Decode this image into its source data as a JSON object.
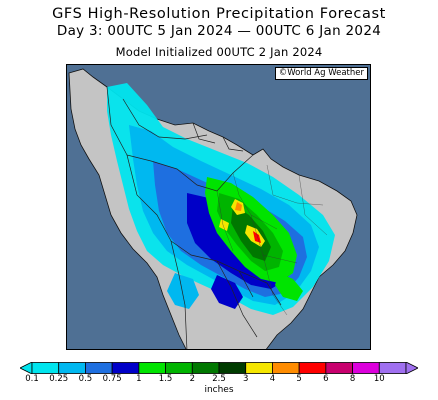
{
  "header": {
    "title": "GFS High-Resolution Precipitation Forecast",
    "subtitle": "Day 3: 00UTC 5 Jan 2024 — 00UTC 6 Jan 2024",
    "init": "Model Initialized 00UTC 2 Jan 2024"
  },
  "map": {
    "credit": "©World Ag Weather",
    "region": "South America",
    "colors": {
      "ocean": "#4f7094",
      "land": "#c4c4c4",
      "borders": "#222222"
    }
  },
  "legend": {
    "units": "inches",
    "ticks": [
      "0.1",
      "0.25",
      "0.5",
      "0.75",
      "1",
      "1.5",
      "2",
      "2.5",
      "3",
      "4",
      "5",
      "6",
      "8",
      "10"
    ],
    "colors": [
      "#00e5ee",
      "#00b8f0",
      "#1e6fe0",
      "#0000c8",
      "#00e400",
      "#00b400",
      "#007800",
      "#003c00",
      "#f5e600",
      "#ff8c00",
      "#ff0000",
      "#c8006e",
      "#dc00dc",
      "#a070f0"
    ]
  }
}
